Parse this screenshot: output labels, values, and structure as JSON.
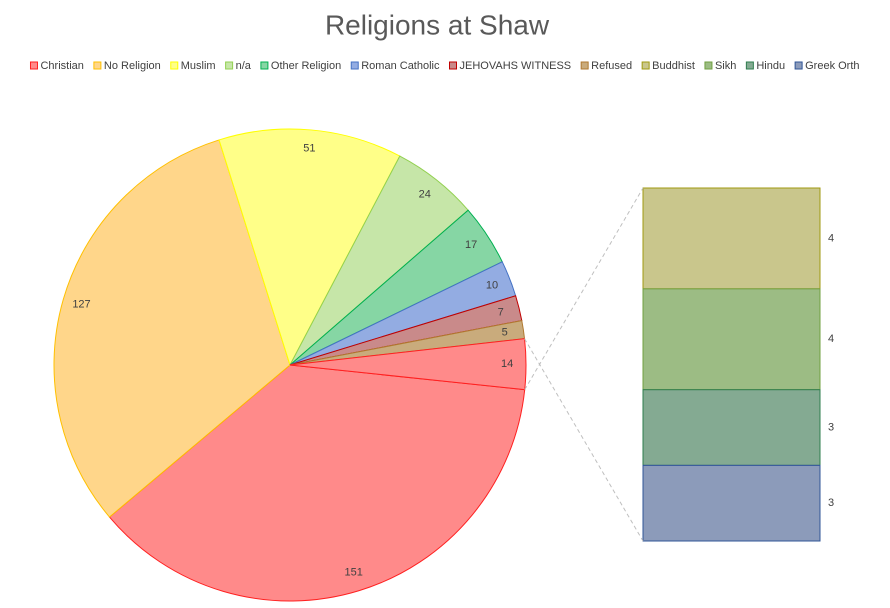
{
  "chart_data": {
    "type": "pie-of-bar",
    "title": "Religions at Shaw",
    "categories": [
      "Christian",
      "No Religion",
      "Muslim",
      "n/a",
      "Other Religion",
      "Roman Catholic",
      "JEHOVAHS WITNESS",
      "Refused",
      "Buddhist",
      "Sikh",
      "Hindu",
      "Greek Orth"
    ],
    "values": [
      151,
      127,
      51,
      24,
      17,
      10,
      7,
      5,
      4,
      4,
      3,
      3
    ],
    "colors": [
      "#ff8a8a",
      "#ffd68a",
      "#ffff88",
      "#c6e6a8",
      "#86d6a4",
      "#93ace2",
      "#c98a8a",
      "#c9ab7c",
      "#c9c68c",
      "#9cbc84",
      "#84aa92",
      "#8c9bba"
    ],
    "stroke_colors": [
      "#ff2020",
      "#ffc000",
      "#ffff00",
      "#92d050",
      "#00b050",
      "#4472c4",
      "#c00000",
      "#b07a30",
      "#a09a10",
      "#70a040",
      "#2e7d4e",
      "#2f5597"
    ],
    "pie_count": 8,
    "pie_other_value": 14,
    "pie_other_color": "#ff8a8a",
    "pie_other_stroke": "#ff2020",
    "legend": "top"
  }
}
